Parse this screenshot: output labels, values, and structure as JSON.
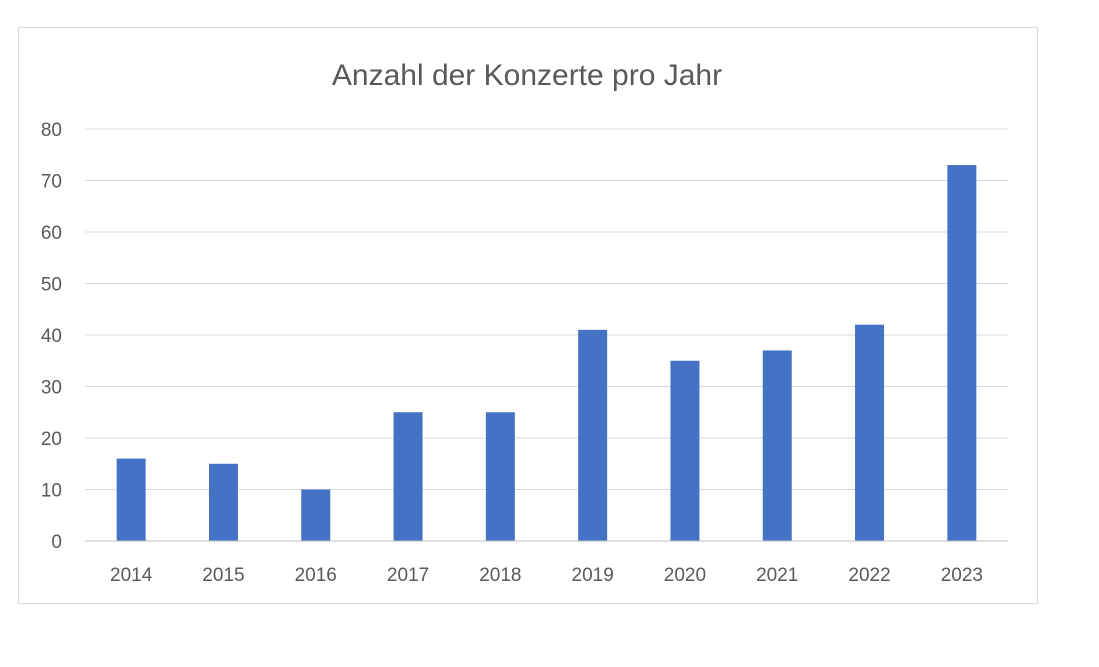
{
  "chart_data": {
    "type": "bar",
    "title": "Anzahl der Konzerte pro Jahr",
    "xlabel": "",
    "ylabel": "",
    "categories": [
      "2014",
      "2015",
      "2016",
      "2017",
      "2018",
      "2019",
      "2020",
      "2021",
      "2022",
      "2023"
    ],
    "values": [
      16,
      15,
      10,
      25,
      25,
      41,
      35,
      37,
      42,
      73
    ],
    "ylim": [
      0,
      80
    ],
    "yticks": [
      "0",
      "10",
      "20",
      "30",
      "40",
      "50",
      "60",
      "70",
      "80"
    ],
    "grid": true,
    "legend": "none",
    "bar_color": "#4472c4"
  }
}
